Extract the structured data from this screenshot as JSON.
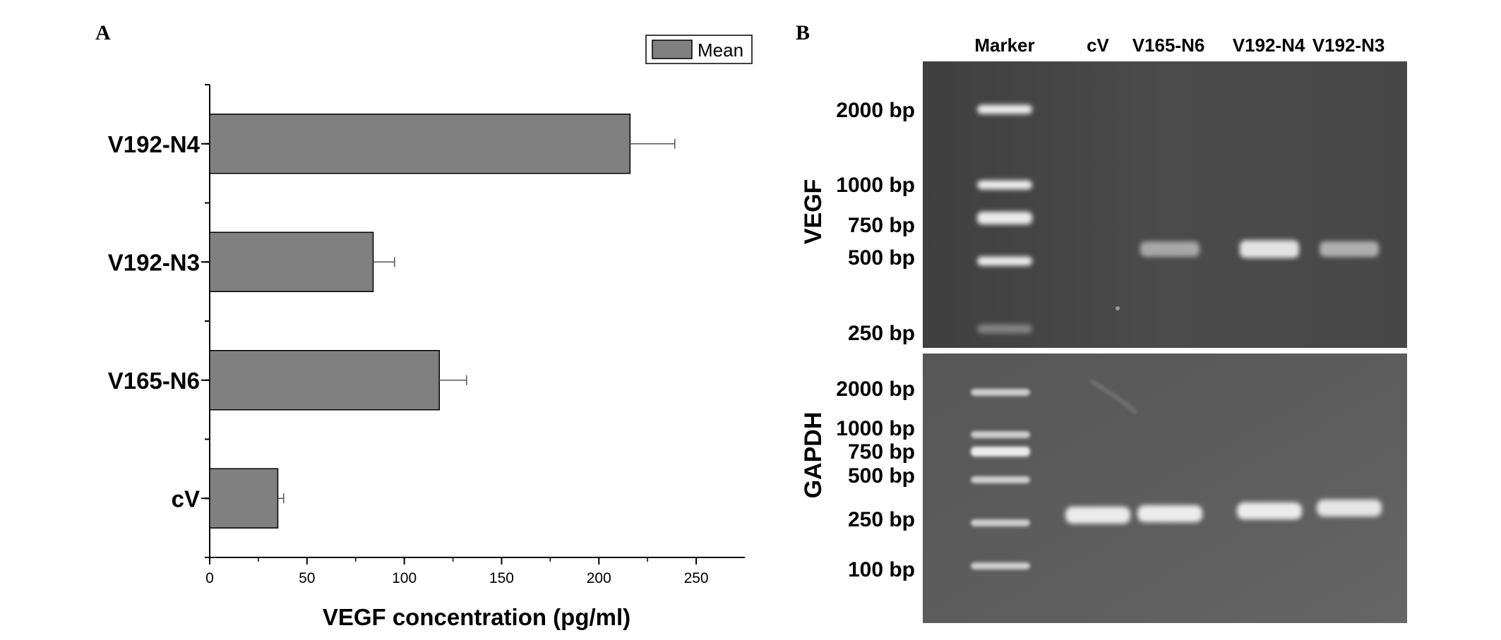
{
  "panels": {
    "a_label": "A",
    "b_label": "B"
  },
  "chart_data": {
    "type": "bar",
    "orientation": "horizontal",
    "categories": [
      "V192-N4",
      "V192-N3",
      "V165-N6",
      "cV"
    ],
    "series": [
      {
        "name": "Mean",
        "values": [
          216,
          84,
          118,
          35
        ],
        "errors": [
          23,
          11,
          14,
          3
        ]
      }
    ],
    "title": "",
    "xlabel": "VEGF concentration (pg/ml)",
    "ylabel": "",
    "xlim": [
      0,
      275
    ],
    "xticks": [
      0,
      50,
      100,
      150,
      200,
      250
    ],
    "legend_position": "top-right",
    "grid": false,
    "bar_color": "#808080",
    "edge_color": "#000000"
  },
  "gel": {
    "lane_labels": [
      "Marker",
      "cV",
      "V165-N6",
      "V192-N4",
      "V192-N3"
    ],
    "vegf": {
      "label": "VEGF",
      "marker_labels": [
        "2000 bp",
        "1000 bp",
        "750 bp",
        "500 bp",
        "250 bp"
      ],
      "marker_values": [
        2000,
        1000,
        750,
        500,
        250
      ],
      "band_lanes": [
        "V165-N6",
        "V192-N4",
        "V192-N3"
      ],
      "band_intensity": [
        0.55,
        0.9,
        0.6
      ]
    },
    "gapdh": {
      "label": "GAPDH",
      "marker_labels": [
        "2000 bp",
        "1000 bp",
        "750 bp",
        "500 bp",
        "250 bp",
        "100 bp"
      ],
      "marker_values": [
        2000,
        1000,
        750,
        500,
        250,
        100
      ],
      "band_lanes": [
        "cV",
        "V165-N6",
        "V192-N4",
        "V192-N3"
      ],
      "band_intensity": [
        0.95,
        0.95,
        0.95,
        0.9
      ]
    },
    "gel_bg_color": "#4a4a4a",
    "band_color": "#f4f4f4"
  }
}
